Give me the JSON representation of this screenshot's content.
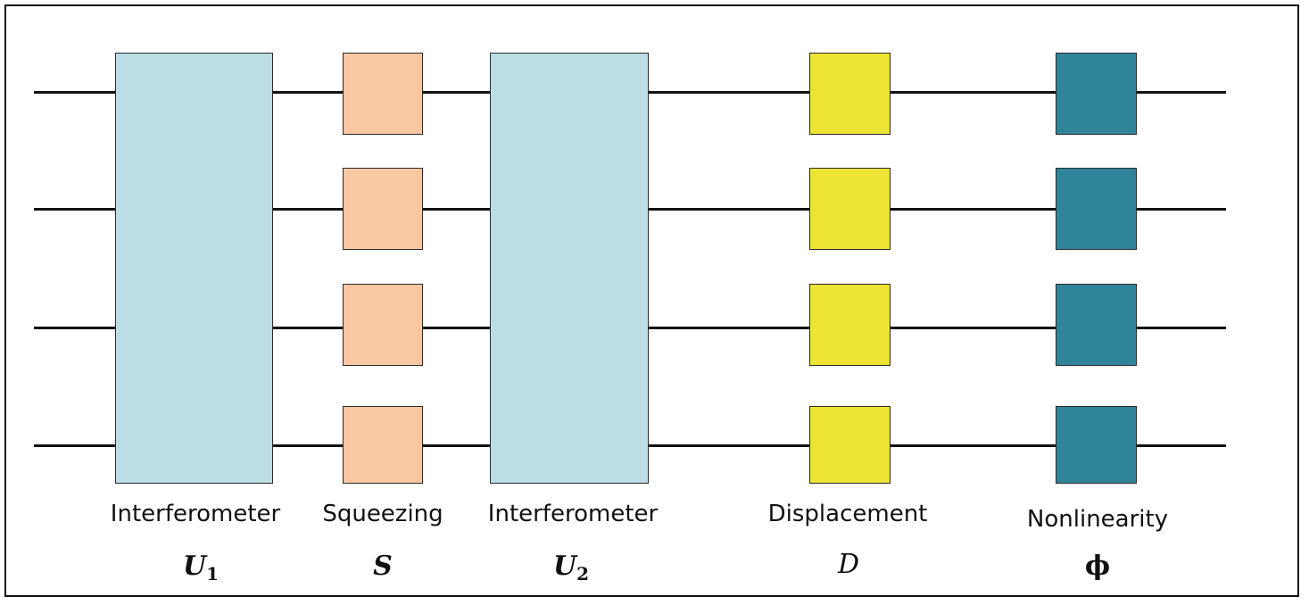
{
  "diagram": {
    "wires": 4,
    "colors": {
      "interferometer": "#bcdde6",
      "squeezing": "#f9c8a2",
      "displacement": "#ede335",
      "nonlinearity": "#2f8499",
      "wire": "#111111"
    },
    "stages": [
      {
        "id": "u1",
        "label": "Interferometer",
        "symbol": "U",
        "subscript": "1",
        "style": "bold-italic"
      },
      {
        "id": "s",
        "label": "Squeezing",
        "symbol": "S",
        "subscript": "",
        "style": "bold-italic"
      },
      {
        "id": "u2",
        "label": "Interferometer",
        "symbol": "U",
        "subscript": "2",
        "style": "bold-italic"
      },
      {
        "id": "d",
        "label": "Displacement",
        "symbol": "D",
        "subscript": "",
        "style": "italic"
      },
      {
        "id": "phi",
        "label": "Nonlinearity",
        "symbol": "ϕ",
        "subscript": "",
        "style": "bold"
      }
    ]
  }
}
